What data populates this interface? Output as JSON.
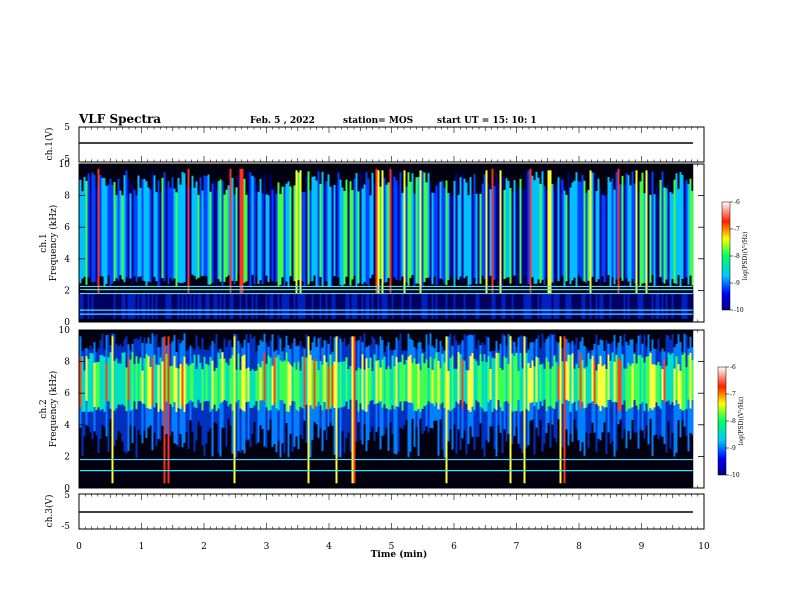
{
  "header": {
    "title": "VLF Spectra",
    "date": "Feb. 5 , 2022",
    "station": "station= MOS",
    "start_ut": "start UT =  15: 10: 1"
  },
  "chart_data": [
    {
      "type": "line",
      "name_label": "ch.1(V)",
      "ylabel": "ch.1(V)",
      "ylim": [
        -5,
        5
      ],
      "yticks": [
        "5",
        "-5"
      ],
      "level_v": 0.1
    },
    {
      "type": "heatmap",
      "ylabel": "ch.1\nFrequency (kHz)",
      "ylabel_top": "ch.1",
      "ylabel_bottom": "Frequency (kHz)",
      "ylim": [
        0,
        10
      ],
      "yticks": [
        "0",
        "2",
        "4",
        "6",
        "8",
        "10"
      ],
      "xlim": [
        0,
        10
      ],
      "colorbar": {
        "label": "log(PSD)(V²/Hz)",
        "range": [
          -10,
          -6
        ],
        "ticks": [
          "-6",
          "-7",
          "-8",
          "-9",
          "-10"
        ]
      },
      "band_lines_khz": [
        0.5,
        0.75,
        1.8,
        2.05,
        2.25
      ]
    },
    {
      "type": "heatmap",
      "ylabel": "ch.2\nFrequency (kHz)",
      "ylabel_top": "ch.2",
      "ylabel_bottom": "Frequency (kHz)",
      "ylim": [
        0,
        10
      ],
      "yticks": [
        "0",
        "2",
        "4",
        "6",
        "8",
        "10"
      ],
      "xlim": [
        0,
        10
      ],
      "colorbar": {
        "label": "log(PSD)(V²/Hz)",
        "range": [
          -10,
          -6
        ],
        "ticks": [
          "-6",
          "-7",
          "-8",
          "-9",
          "-10"
        ]
      },
      "band_lines_khz": [
        1.1,
        1.8
      ]
    },
    {
      "type": "line",
      "ylabel": "ch.3(V)",
      "ylim": [
        -5,
        5
      ],
      "yticks": [
        "5",
        "-5"
      ],
      "level_v": 0.1
    }
  ],
  "xaxis": {
    "label": "Time (min)",
    "range": [
      0,
      10
    ],
    "ticks": [
      "0",
      "1",
      "2",
      "3",
      "4",
      "5",
      "6",
      "7",
      "8",
      "9",
      "10"
    ],
    "data_end_min": 9.82
  }
}
